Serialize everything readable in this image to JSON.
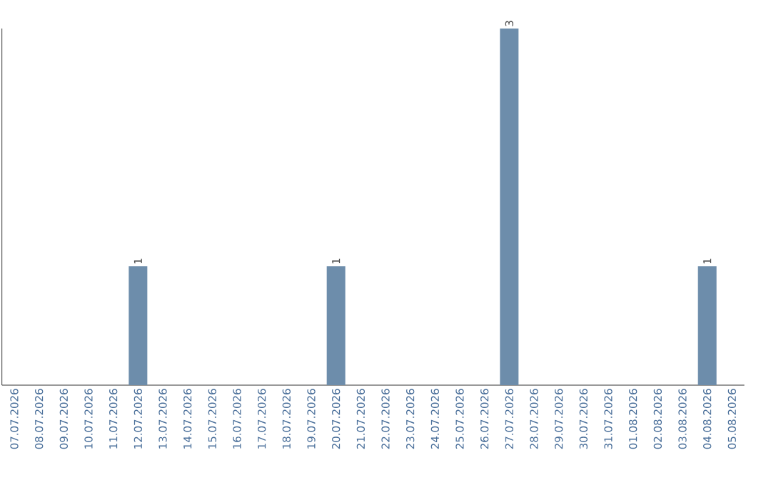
{
  "chart_data": {
    "type": "bar",
    "categories": [
      "07.07.2026",
      "08.07.2026",
      "09.07.2026",
      "10.07.2026",
      "11.07.2026",
      "12.07.2026",
      "13.07.2026",
      "14.07.2026",
      "15.07.2026",
      "16.07.2026",
      "17.07.2026",
      "18.07.2026",
      "19.07.2026",
      "20.07.2026",
      "21.07.2026",
      "22.07.2026",
      "23.07.2026",
      "24.07.2026",
      "25.07.2026",
      "26.07.2026",
      "27.07.2026",
      "28.07.2026",
      "29.07.2026",
      "30.07.2026",
      "31.07.2026",
      "01.08.2026",
      "02.08.2026",
      "03.08.2026",
      "04.08.2026",
      "05.08.2026"
    ],
    "values": [
      0,
      0,
      0,
      0,
      0,
      1,
      0,
      0,
      0,
      0,
      0,
      0,
      0,
      1,
      0,
      0,
      0,
      0,
      0,
      0,
      3,
      0,
      0,
      0,
      0,
      0,
      0,
      0,
      1,
      0
    ],
    "value_labels": [
      null,
      null,
      null,
      null,
      null,
      "1",
      null,
      null,
      null,
      null,
      null,
      null,
      null,
      "1",
      null,
      null,
      null,
      null,
      null,
      null,
      "3",
      null,
      null,
      null,
      null,
      null,
      null,
      null,
      "1",
      null
    ],
    "color": "#6d8dab",
    "ylim": [
      0,
      3
    ],
    "tick_labels": "x"
  }
}
